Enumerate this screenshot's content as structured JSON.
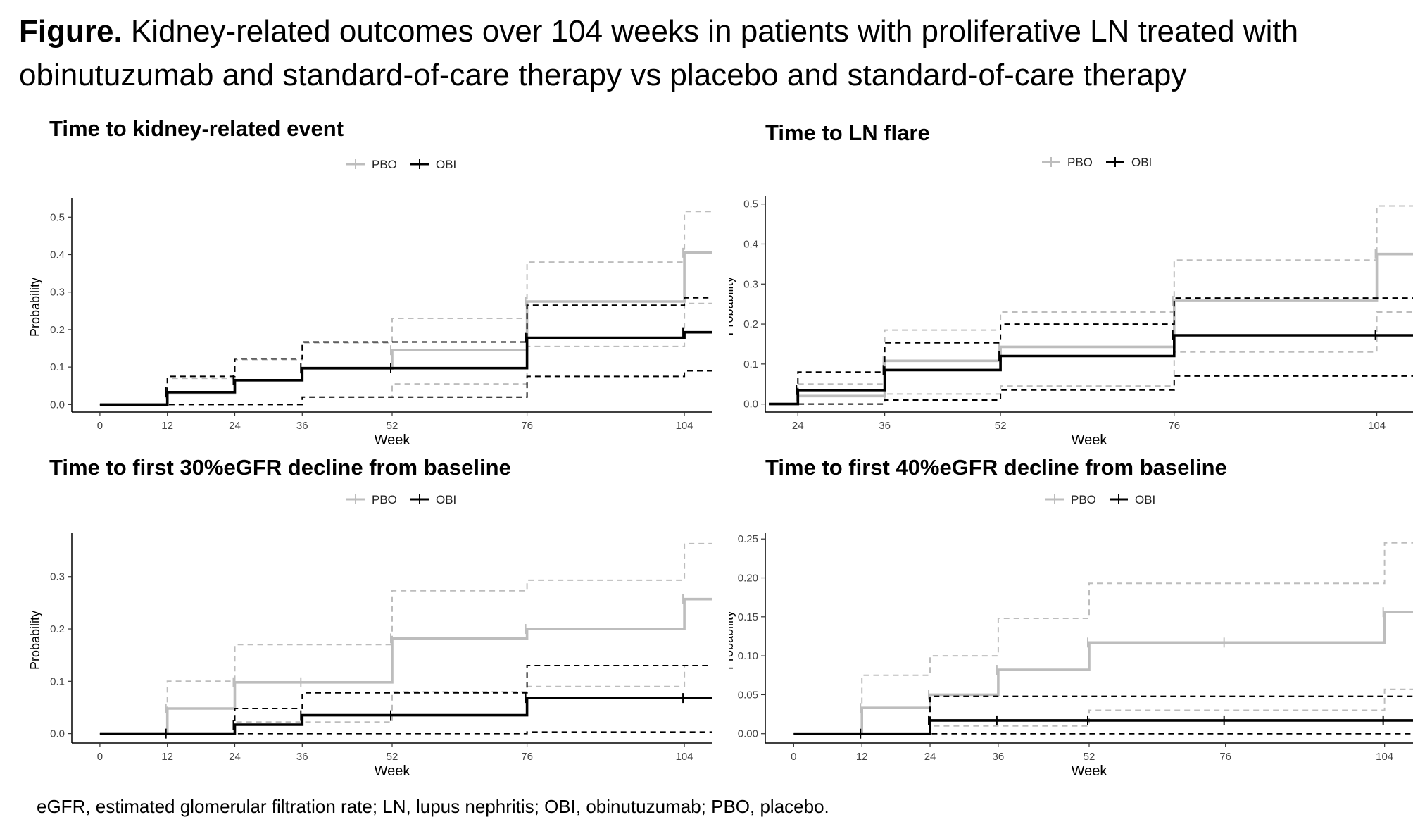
{
  "figure": {
    "label": "Figure.",
    "title": "Kidney-related outcomes over 104 weeks in patients with proliferative LN treated with obinutuzumab and standard-of-care therapy vs placebo and standard-of-care therapy",
    "footnote": "eGFR, estimated glomerular filtration rate; LN, lupus nephritis; OBI, obinutuzumab; PBO, placebo."
  },
  "colors": {
    "pbo": "#bdbdbd",
    "obi": "#000000"
  },
  "chart_data": [
    {
      "type": "line",
      "step": true,
      "title": "Time to kidney-related event",
      "xlabel": "Week",
      "ylabel": "Probability",
      "xlim": [
        -5,
        109
      ],
      "ylim": [
        -0.02,
        0.54
      ],
      "xticks": [
        0,
        12,
        24,
        36,
        52,
        76,
        104
      ],
      "yticks": [
        0.0,
        0.1,
        0.2,
        0.3,
        0.4,
        0.5
      ],
      "ytick_labels": [
        "0.0",
        "0.1",
        "0.2",
        "0.3",
        "0.4",
        "0.5"
      ],
      "legend": "top",
      "legend_labels": [
        "PBO",
        "OBI"
      ],
      "series": [
        {
          "name": "PBO",
          "role": "estimate",
          "x": [
            0,
            12,
            24,
            36,
            52,
            76,
            104,
            109
          ],
          "y": [
            0,
            0.03,
            0.065,
            0.095,
            0.145,
            0.275,
            0.405,
            0.405
          ]
        },
        {
          "name": "PBO",
          "role": "ci_upper",
          "x": [
            0,
            12,
            24,
            36,
            52,
            76,
            104,
            109
          ],
          "y": [
            0,
            0.07,
            0.12,
            0.165,
            0.23,
            0.38,
            0.515,
            0.515
          ]
        },
        {
          "name": "PBO",
          "role": "ci_lower",
          "x": [
            0,
            12,
            24,
            36,
            52,
            76,
            104,
            109
          ],
          "y": [
            0,
            0,
            0,
            0.02,
            0.055,
            0.155,
            0.27,
            0.27
          ]
        },
        {
          "name": "OBI",
          "role": "estimate",
          "x": [
            0,
            12,
            24,
            36,
            52,
            76,
            104,
            109
          ],
          "y": [
            0,
            0.033,
            0.065,
            0.097,
            0.097,
            0.178,
            0.193,
            0.193
          ]
        },
        {
          "name": "OBI",
          "role": "ci_upper",
          "x": [
            0,
            12,
            24,
            36,
            52,
            76,
            104,
            109
          ],
          "y": [
            0,
            0.075,
            0.122,
            0.167,
            0.167,
            0.265,
            0.285,
            0.285
          ]
        },
        {
          "name": "OBI",
          "role": "ci_lower",
          "x": [
            0,
            12,
            24,
            36,
            52,
            76,
            104,
            109
          ],
          "y": [
            0,
            0,
            0,
            0.02,
            0.02,
            0.075,
            0.09,
            0.09
          ]
        }
      ]
    },
    {
      "type": "line",
      "step": true,
      "title": "Time to LN flare",
      "xlabel": "Week",
      "ylabel": "Probability",
      "xlim": [
        19.5,
        109
      ],
      "ylim": [
        -0.02,
        0.51
      ],
      "xticks": [
        24,
        36,
        52,
        76,
        104
      ],
      "yticks": [
        0.0,
        0.1,
        0.2,
        0.3,
        0.4,
        0.5
      ],
      "ytick_labels": [
        "0.0",
        "0.1",
        "0.2",
        "0.3",
        "0.4",
        "0.5"
      ],
      "legend": "top",
      "legend_labels": [
        "PBO",
        "OBI"
      ],
      "series": [
        {
          "name": "PBO",
          "role": "estimate",
          "x": [
            20,
            24,
            36,
            52,
            76,
            104,
            109
          ],
          "y": [
            0,
            0.02,
            0.108,
            0.143,
            0.258,
            0.375,
            0.375
          ]
        },
        {
          "name": "PBO",
          "role": "ci_upper",
          "x": [
            20,
            24,
            36,
            52,
            76,
            104,
            109
          ],
          "y": [
            0,
            0.05,
            0.185,
            0.23,
            0.36,
            0.495,
            0.495
          ]
        },
        {
          "name": "PBO",
          "role": "ci_lower",
          "x": [
            20,
            24,
            36,
            52,
            76,
            104,
            109
          ],
          "y": [
            0,
            0,
            0.025,
            0.045,
            0.13,
            0.23,
            0.23
          ]
        },
        {
          "name": "OBI",
          "role": "estimate",
          "x": [
            20,
            24,
            36,
            52,
            76,
            104,
            109
          ],
          "y": [
            0,
            0.035,
            0.085,
            0.12,
            0.172,
            0.172,
            0.172
          ]
        },
        {
          "name": "OBI",
          "role": "ci_upper",
          "x": [
            20,
            24,
            36,
            52,
            76,
            104,
            109
          ],
          "y": [
            0,
            0.08,
            0.153,
            0.2,
            0.265,
            0.265,
            0.265
          ]
        },
        {
          "name": "OBI",
          "role": "ci_lower",
          "x": [
            20,
            24,
            36,
            52,
            76,
            104,
            109
          ],
          "y": [
            0,
            0,
            0.01,
            0.035,
            0.07,
            0.07,
            0.07
          ]
        }
      ]
    },
    {
      "type": "line",
      "step": true,
      "title": "Time to first 30%eGFR decline from baseline",
      "xlabel": "Week",
      "ylabel": "Probability",
      "xlim": [
        -5,
        109
      ],
      "ylim": [
        -0.018,
        0.375
      ],
      "xticks": [
        0,
        12,
        24,
        36,
        52,
        76,
        104
      ],
      "yticks": [
        0.0,
        0.1,
        0.2,
        0.3
      ],
      "ytick_labels": [
        "0.0",
        "0.1",
        "0.2",
        "0.3"
      ],
      "legend": "top",
      "legend_labels": [
        "PBO",
        "OBI"
      ],
      "series": [
        {
          "name": "PBO",
          "role": "estimate",
          "x": [
            0,
            12,
            24,
            36,
            52,
            76,
            104,
            109
          ],
          "y": [
            0,
            0.048,
            0.098,
            0.098,
            0.182,
            0.2,
            0.257,
            0.257
          ]
        },
        {
          "name": "PBO",
          "role": "ci_upper",
          "x": [
            0,
            12,
            24,
            36,
            52,
            76,
            104,
            109
          ],
          "y": [
            0,
            0.1,
            0.17,
            0.17,
            0.273,
            0.293,
            0.363,
            0.363
          ]
        },
        {
          "name": "PBO",
          "role": "ci_lower",
          "x": [
            0,
            12,
            24,
            36,
            52,
            76,
            104,
            109
          ],
          "y": [
            0,
            0,
            0.022,
            0.022,
            0.08,
            0.09,
            0.13,
            0.13
          ]
        },
        {
          "name": "OBI",
          "role": "estimate",
          "x": [
            0,
            12,
            24,
            36,
            52,
            76,
            104,
            109
          ],
          "y": [
            0,
            0,
            0.017,
            0.035,
            0.035,
            0.068,
            0.068,
            0.068
          ]
        },
        {
          "name": "OBI",
          "role": "ci_upper",
          "x": [
            0,
            12,
            24,
            36,
            52,
            76,
            104,
            109
          ],
          "y": [
            0,
            0,
            0.048,
            0.078,
            0.078,
            0.13,
            0.13,
            0.13
          ]
        },
        {
          "name": "OBI",
          "role": "ci_lower",
          "x": [
            0,
            12,
            24,
            36,
            52,
            76,
            104,
            109
          ],
          "y": [
            0,
            0,
            0,
            0,
            0,
            0.003,
            0.003,
            0.003
          ]
        }
      ]
    },
    {
      "type": "line",
      "step": true,
      "title": "Time to first 40%eGFR decline from baseline",
      "xlabel": "Week",
      "ylabel": "Probability",
      "xlim": [
        -5,
        109
      ],
      "ylim": [
        -0.012,
        0.252
      ],
      "xticks": [
        0,
        12,
        24,
        36,
        52,
        76,
        104
      ],
      "yticks": [
        0.0,
        0.05,
        0.1,
        0.15,
        0.2,
        0.25
      ],
      "ytick_labels": [
        "0.00",
        "0.05",
        "0.10",
        "0.15",
        "0.20",
        "0.25"
      ],
      "legend": "top",
      "legend_labels": [
        "PBO",
        "OBI"
      ],
      "series": [
        {
          "name": "PBO",
          "role": "estimate",
          "x": [
            0,
            12,
            24,
            36,
            52,
            76,
            104,
            109
          ],
          "y": [
            0,
            0.033,
            0.05,
            0.082,
            0.117,
            0.117,
            0.156,
            0.156
          ]
        },
        {
          "name": "PBO",
          "role": "ci_upper",
          "x": [
            0,
            12,
            24,
            36,
            52,
            76,
            104,
            109
          ],
          "y": [
            0,
            0.075,
            0.1,
            0.148,
            0.193,
            0.193,
            0.245,
            0.245
          ]
        },
        {
          "name": "PBO",
          "role": "ci_lower",
          "x": [
            0,
            12,
            24,
            36,
            52,
            76,
            104,
            109
          ],
          "y": [
            0,
            0,
            0.01,
            0.01,
            0.03,
            0.03,
            0.057,
            0.057
          ]
        },
        {
          "name": "OBI",
          "role": "estimate",
          "x": [
            0,
            12,
            24,
            36,
            52,
            76,
            104,
            109
          ],
          "y": [
            0,
            0,
            0.017,
            0.017,
            0.017,
            0.017,
            0.017,
            0.017
          ]
        },
        {
          "name": "OBI",
          "role": "ci_upper",
          "x": [
            0,
            12,
            24,
            36,
            52,
            76,
            104,
            109
          ],
          "y": [
            0,
            0,
            0.048,
            0.048,
            0.048,
            0.048,
            0.048,
            0.048
          ]
        },
        {
          "name": "OBI",
          "role": "ci_lower",
          "x": [
            0,
            12,
            24,
            36,
            52,
            76,
            104,
            109
          ],
          "y": [
            0,
            0,
            0,
            0,
            0,
            0,
            0,
            0
          ]
        }
      ]
    }
  ]
}
